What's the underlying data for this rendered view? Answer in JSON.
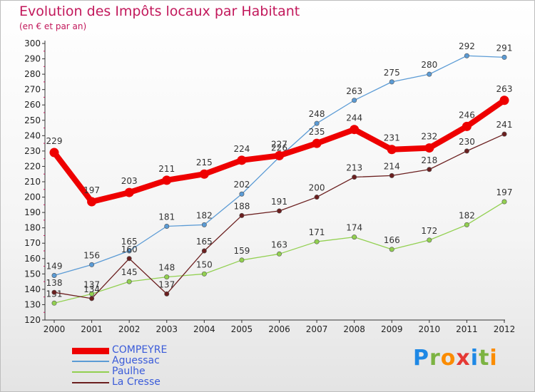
{
  "title": "Evolution des Impôts locaux par Habitant",
  "subtitle": "(en € et par an)",
  "brand": {
    "letters": [
      {
        "ch": "P",
        "color": "#1e88e5"
      },
      {
        "ch": "r",
        "color": "#7cb342"
      },
      {
        "ch": "o",
        "color": "#fb8c00"
      },
      {
        "ch": "x",
        "color": "#e53935"
      },
      {
        "ch": "i",
        "color": "#1e88e5"
      },
      {
        "ch": "t",
        "color": "#7cb342"
      },
      {
        "ch": "i",
        "color": "#fb8c00"
      }
    ]
  },
  "chart_data": {
    "type": "line",
    "title": "Evolution des Impôts locaux par Habitant",
    "subtitle": "(en € et par an)",
    "x": [
      2000,
      2001,
      2002,
      2003,
      2004,
      2005,
      2006,
      2007,
      2008,
      2009,
      2010,
      2011,
      2012
    ],
    "ylim": [
      120,
      300
    ],
    "yticks": [
      120,
      130,
      140,
      150,
      160,
      170,
      180,
      190,
      200,
      210,
      220,
      230,
      240,
      250,
      260,
      270,
      280,
      290,
      300
    ],
    "grid": false,
    "legend": "bottom-left",
    "series": [
      {
        "name": "COMPEYRE",
        "color": "#ee0000",
        "emphasis": true,
        "values": [
          229,
          197,
          203,
          211,
          215,
          224,
          227,
          235,
          244,
          231,
          232,
          246,
          263
        ]
      },
      {
        "name": "Aguessac",
        "color": "#5b9bd5",
        "values": [
          149,
          156,
          165,
          181,
          182,
          202,
          226,
          248,
          263,
          275,
          280,
          292,
          291
        ]
      },
      {
        "name": "Paulhe",
        "color": "#92d050",
        "values": [
          131,
          137,
          145,
          148,
          150,
          159,
          163,
          171,
          174,
          166,
          172,
          182,
          197
        ]
      },
      {
        "name": "La Cresse",
        "color": "#6b1f1f",
        "values": [
          138,
          134,
          160,
          137,
          165,
          188,
          191,
          200,
          213,
          214,
          218,
          230,
          241
        ]
      }
    ]
  }
}
